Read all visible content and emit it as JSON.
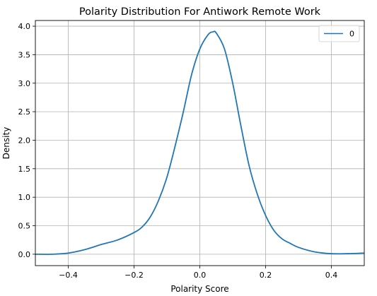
{
  "chart_data": {
    "type": "line",
    "title": "Polarity Distribution For Antiwork Remote Work",
    "xlabel": "Polarity Score",
    "ylabel": "Density",
    "xlim": [
      -0.5,
      0.5
    ],
    "ylim": [
      -0.2,
      4.1
    ],
    "x_ticks": [
      -0.4,
      -0.2,
      0.0,
      0.2,
      0.4
    ],
    "x_tick_labels": [
      "−0.4",
      "−0.2",
      "0.0",
      "0.2",
      "0.4"
    ],
    "y_ticks": [
      0.0,
      0.5,
      1.0,
      1.5,
      2.0,
      2.5,
      3.0,
      3.5,
      4.0
    ],
    "y_tick_labels": [
      "0.0",
      "0.5",
      "1.0",
      "1.5",
      "2.0",
      "2.5",
      "3.0",
      "3.5",
      "4.0"
    ],
    "grid": true,
    "legend_position": "top-right",
    "series": [
      {
        "name": "0",
        "color": "#1f77b4",
        "x": [
          -0.5,
          -0.45,
          -0.4,
          -0.35,
          -0.3,
          -0.25,
          -0.2,
          -0.175,
          -0.15,
          -0.125,
          -0.1,
          -0.075,
          -0.05,
          -0.025,
          0.0,
          0.025,
          0.04,
          0.05,
          0.075,
          0.1,
          0.125,
          0.15,
          0.175,
          0.2,
          0.225,
          0.25,
          0.275,
          0.3,
          0.35,
          0.4,
          0.45,
          0.5
        ],
        "y": [
          0.0,
          0.0,
          0.02,
          0.08,
          0.17,
          0.25,
          0.38,
          0.48,
          0.66,
          0.95,
          1.35,
          1.9,
          2.5,
          3.15,
          3.6,
          3.85,
          3.9,
          3.88,
          3.6,
          3.0,
          2.25,
          1.55,
          1.05,
          0.68,
          0.42,
          0.27,
          0.19,
          0.12,
          0.04,
          0.01,
          0.01,
          0.02
        ]
      }
    ]
  }
}
